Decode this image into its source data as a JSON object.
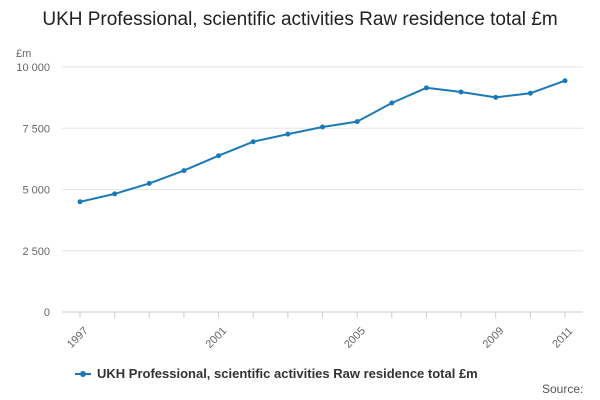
{
  "chart_data": {
    "type": "line",
    "title": "UKH Professional, scientific activities Raw residence total £m",
    "yunit": "£m",
    "xlabel": "",
    "ylabel": "",
    "x": [
      1997,
      1998,
      1999,
      2000,
      2001,
      2002,
      2003,
      2004,
      2005,
      2006,
      2007,
      2008,
      2009,
      2010,
      2011
    ],
    "x_tick_labels": [
      "1997",
      "2001",
      "2005",
      "2009",
      "2011"
    ],
    "y_tick_labels": [
      "0",
      "2 500",
      "5 000",
      "7 500",
      "10 000"
    ],
    "ylim": [
      0,
      10000
    ],
    "grid": true,
    "legend_position": "bottom-left",
    "series": [
      {
        "name": "UKH Professional, scientific activities Raw residence total £m",
        "color": "#1a7ab7",
        "values": [
          4500,
          4820,
          5250,
          5770,
          6380,
          6950,
          7260,
          7550,
          7770,
          8530,
          9150,
          8980,
          8760,
          8930,
          9440
        ]
      }
    ]
  },
  "footer": {
    "source_label": "Source:"
  }
}
